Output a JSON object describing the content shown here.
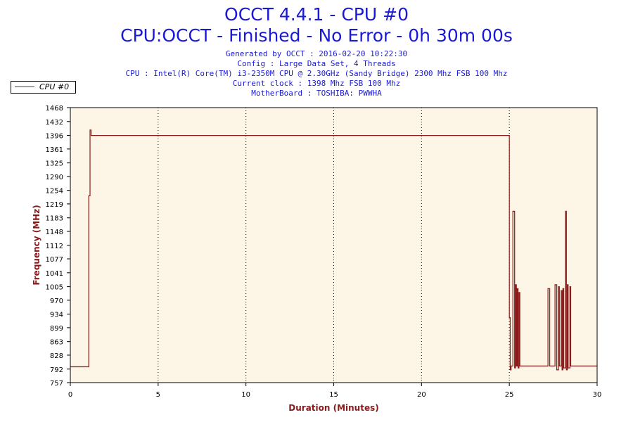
{
  "header": {
    "title": "OCCT 4.4.1 - CPU #0",
    "subtitle": "CPU:OCCT - Finished - No Error - 0h 30m 00s",
    "info": [
      "Generated by OCCT : 2016-02-20 10:22:30",
      "Config : Large Data Set, 4 Threads",
      "CPU : Intel(R) Core(TM) i3-2350M CPU @ 2.30GHz (Sandy Bridge) 2300 Mhz FSB 100 Mhz",
      "Current clock : 1398 Mhz FSB 100 Mhz",
      "MotherBoard : TOSHIBA: PWWHA"
    ]
  },
  "colors": {
    "series": "#8b1a1a",
    "plot_background": "#fdf5e6",
    "title": "#1a1ad6",
    "axis_title": "#8b1a1a"
  },
  "chart_data": {
    "type": "line",
    "xlabel": "Duration (Minutes)",
    "ylabel": "Frequency (MHz)",
    "xlim": [
      0,
      30
    ],
    "ylim": [
      757,
      1468
    ],
    "x_ticks": [
      0,
      5,
      10,
      15,
      20,
      25,
      30
    ],
    "y_ticks": [
      757,
      792,
      828,
      863,
      899,
      934,
      970,
      1005,
      1041,
      1077,
      1112,
      1148,
      1183,
      1219,
      1254,
      1290,
      1325,
      1361,
      1396,
      1432,
      1468
    ],
    "grid": "vertical dotted",
    "legend": "top-left",
    "series": [
      {
        "name": "CPU #0",
        "x": [
          0,
          1.05,
          1.05,
          1.12,
          1.12,
          1.18,
          1.18,
          25.0,
          25.0,
          25.05,
          25.05,
          25.1,
          25.1,
          25.2,
          25.2,
          25.3,
          25.3,
          25.35,
          25.35,
          25.4,
          25.4,
          25.45,
          25.45,
          25.5,
          25.5,
          25.55,
          25.55,
          25.6,
          25.6,
          27.2,
          27.2,
          27.3,
          27.3,
          27.6,
          27.6,
          27.7,
          27.7,
          27.8,
          27.8,
          27.85,
          27.85,
          27.95,
          27.95,
          28.0,
          28.0,
          28.05,
          28.05,
          28.1,
          28.1,
          28.2,
          28.2,
          28.25,
          28.25,
          28.3,
          28.3,
          28.35,
          28.35,
          28.45,
          28.45,
          28.5,
          28.5,
          30
        ],
        "y": [
          798,
          798,
          1240,
          1240,
          1410,
          1410,
          1396,
          1396,
          925,
          925,
          790,
          790,
          800,
          800,
          1200,
          1200,
          795,
          795,
          1010,
          1010,
          800,
          800,
          1000,
          1000,
          795,
          795,
          990,
          990,
          800,
          800,
          1000,
          1000,
          800,
          800,
          1010,
          1010,
          790,
          790,
          1005,
          1005,
          800,
          800,
          995,
          995,
          790,
          790,
          1000,
          1000,
          795,
          795,
          1200,
          1200,
          790,
          790,
          1010,
          1010,
          795,
          795,
          1005,
          1005,
          800,
          800
        ]
      }
    ]
  }
}
